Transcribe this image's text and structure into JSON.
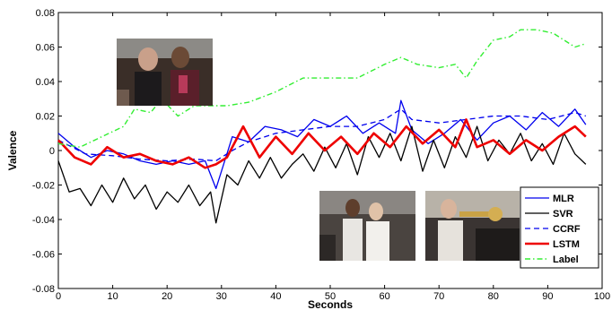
{
  "chart_data": {
    "type": "line",
    "title": "",
    "xlabel": "Seconds",
    "ylabel": "Valence",
    "xlim": [
      0,
      100
    ],
    "ylim": [
      -0.08,
      0.08
    ],
    "xticks": [
      0,
      10,
      20,
      30,
      40,
      50,
      60,
      70,
      80,
      90,
      100
    ],
    "yticks": [
      -0.08,
      -0.06,
      -0.04,
      -0.02,
      0,
      0.02,
      0.04,
      0.06,
      0.08
    ],
    "xtick_labels": [
      "0",
      "10",
      "20",
      "30",
      "40",
      "50",
      "60",
      "70",
      "80",
      "90",
      "100"
    ],
    "ytick_labels": [
      "-0.08",
      "-0.06",
      "-0.04",
      "-0.02",
      "0",
      "0.02",
      "0.04",
      "0.06",
      "0.08"
    ],
    "grid": false,
    "legend_position": "bottom-right",
    "series": [
      {
        "name": "MLR",
        "color": "#0000ee",
        "dash": "solid",
        "width": 1.3,
        "x": [
          0,
          3,
          6,
          9,
          12,
          15,
          18,
          21,
          24,
          27,
          29,
          32,
          35,
          38,
          41,
          44,
          47,
          50,
          53,
          56,
          59,
          62,
          63,
          65,
          68,
          71,
          74,
          77,
          80,
          83,
          86,
          89,
          92,
          95,
          97
        ],
        "y": [
          0.01,
          0.002,
          -0.004,
          0.0,
          -0.002,
          -0.006,
          -0.008,
          -0.006,
          -0.008,
          -0.006,
          -0.022,
          0.008,
          0.005,
          0.014,
          0.012,
          0.008,
          0.018,
          0.014,
          0.02,
          0.01,
          0.016,
          0.01,
          0.029,
          0.012,
          0.004,
          0.01,
          0.018,
          0.006,
          0.016,
          0.02,
          0.012,
          0.022,
          0.014,
          0.024,
          0.015
        ]
      },
      {
        "name": "SVR",
        "color": "#000000",
        "dash": "solid",
        "width": 1.3,
        "x": [
          0,
          2,
          4,
          6,
          8,
          10,
          12,
          14,
          16,
          18,
          20,
          22,
          24,
          26,
          28,
          29,
          31,
          33,
          35,
          37,
          39,
          41,
          43,
          45,
          47,
          49,
          51,
          53,
          55,
          57,
          59,
          61,
          63,
          65,
          67,
          69,
          71,
          73,
          75,
          77,
          79,
          81,
          83,
          85,
          87,
          89,
          91,
          93,
          95,
          97
        ],
        "y": [
          -0.006,
          -0.024,
          -0.022,
          -0.032,
          -0.02,
          -0.03,
          -0.016,
          -0.028,
          -0.02,
          -0.034,
          -0.024,
          -0.03,
          -0.02,
          -0.032,
          -0.024,
          -0.042,
          -0.014,
          -0.02,
          -0.006,
          -0.016,
          -0.004,
          -0.016,
          -0.008,
          -0.002,
          -0.012,
          0.002,
          -0.01,
          0.004,
          -0.014,
          0.008,
          -0.004,
          0.01,
          -0.006,
          0.014,
          -0.012,
          0.006,
          -0.01,
          0.008,
          -0.004,
          0.014,
          -0.006,
          0.006,
          -0.002,
          0.01,
          -0.006,
          0.004,
          -0.008,
          0.01,
          -0.002,
          -0.008
        ]
      },
      {
        "name": "CCRF",
        "color": "#0000ee",
        "dash": "6,4",
        "width": 1.3,
        "x": [
          0,
          5,
          10,
          15,
          20,
          25,
          29,
          32,
          35,
          40,
          45,
          50,
          55,
          60,
          63,
          65,
          70,
          75,
          80,
          85,
          90,
          95,
          97
        ],
        "y": [
          0.006,
          -0.002,
          -0.003,
          -0.005,
          -0.006,
          -0.005,
          -0.006,
          0.0,
          0.005,
          0.01,
          0.012,
          0.014,
          0.014,
          0.018,
          0.024,
          0.018,
          0.016,
          0.018,
          0.02,
          0.02,
          0.018,
          0.022,
          0.02
        ]
      },
      {
        "name": "LSTM",
        "color": "#ee0000",
        "dash": "solid",
        "width": 2.6,
        "x": [
          0,
          3,
          6,
          9,
          12,
          15,
          18,
          21,
          24,
          27,
          29,
          31,
          34,
          37,
          40,
          43,
          46,
          49,
          52,
          55,
          58,
          61,
          64,
          67,
          70,
          73,
          75,
          77,
          80,
          83,
          86,
          89,
          92,
          95,
          97
        ],
        "y": [
          0.006,
          -0.004,
          -0.008,
          0.002,
          -0.004,
          -0.002,
          -0.006,
          -0.008,
          -0.004,
          -0.01,
          -0.008,
          -0.004,
          0.014,
          -0.004,
          0.008,
          -0.002,
          0.01,
          0.0,
          0.008,
          -0.002,
          0.01,
          0.002,
          0.014,
          0.004,
          0.012,
          0.002,
          0.018,
          0.002,
          0.006,
          -0.002,
          0.006,
          0.0,
          0.008,
          0.014,
          0.008
        ]
      },
      {
        "name": "Label",
        "color": "#33ee33",
        "dash": "6,3,1.5,3",
        "width": 1.4,
        "x": [
          0,
          4,
          8,
          12,
          14,
          17,
          19,
          22,
          25,
          28,
          31,
          35,
          40,
          45,
          50,
          55,
          60,
          63,
          66,
          70,
          73,
          75,
          77,
          80,
          83,
          85,
          88,
          91,
          93,
          95,
          97
        ],
        "y": [
          0.004,
          0.002,
          0.008,
          0.014,
          0.024,
          0.022,
          0.03,
          0.02,
          0.026,
          0.026,
          0.026,
          0.028,
          0.034,
          0.042,
          0.042,
          0.042,
          0.05,
          0.054,
          0.05,
          0.048,
          0.05,
          0.042,
          0.052,
          0.064,
          0.066,
          0.07,
          0.07,
          0.068,
          0.064,
          0.06,
          0.062
        ]
      }
    ]
  }
}
